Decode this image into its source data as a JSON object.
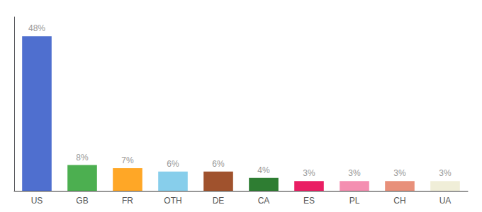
{
  "chart_data": {
    "type": "bar",
    "categories": [
      "US",
      "GB",
      "FR",
      "OTH",
      "DE",
      "CA",
      "ES",
      "PL",
      "CH",
      "UA"
    ],
    "values": [
      48,
      8,
      7,
      6,
      6,
      4,
      3,
      3,
      3,
      3
    ],
    "value_labels": [
      "48%",
      "8%",
      "7%",
      "6%",
      "6%",
      "4%",
      "3%",
      "3%",
      "3%",
      "3%"
    ],
    "colors": [
      "#4f6fcf",
      "#4caf50",
      "#ffa726",
      "#87ceeb",
      "#a0522d",
      "#2e7d32",
      "#e91e63",
      "#f48fb1",
      "#e8907a",
      "#f0eed8"
    ],
    "ylim": [
      0,
      54
    ],
    "grid": false,
    "data_labels": true,
    "tick_labels": "x"
  }
}
